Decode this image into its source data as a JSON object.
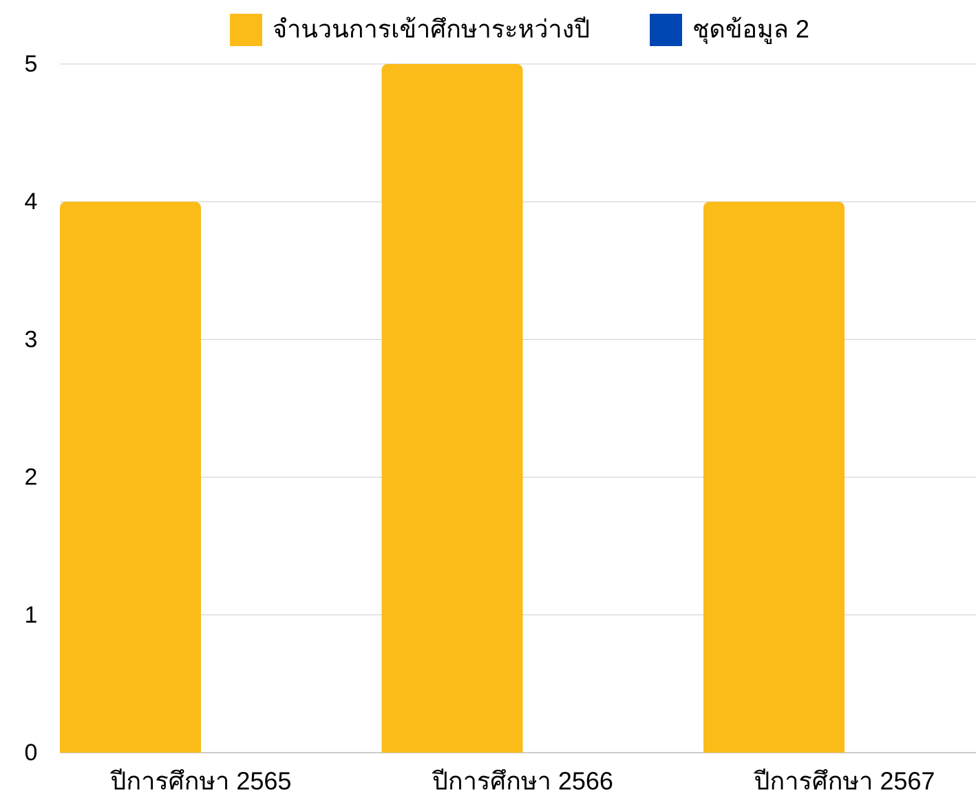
{
  "chart_data": {
    "type": "bar",
    "categories": [
      "ปีการศึกษา 2565",
      "ปีการศึกษา 2566",
      "ปีการศึกษา 2567"
    ],
    "series": [
      {
        "name": "จำนวนการเข้าศึกษาระหว่างปี",
        "color": "#fbbc1a",
        "values": [
          4,
          5,
          4
        ]
      },
      {
        "name": "ชุดข้อมูล 2",
        "color": "#0047b3",
        "values": [
          null,
          null,
          null
        ]
      }
    ],
    "ylim": [
      0,
      5
    ],
    "yticks": [
      0,
      1,
      2,
      3,
      4,
      5
    ],
    "grid": true,
    "legend": "top"
  }
}
